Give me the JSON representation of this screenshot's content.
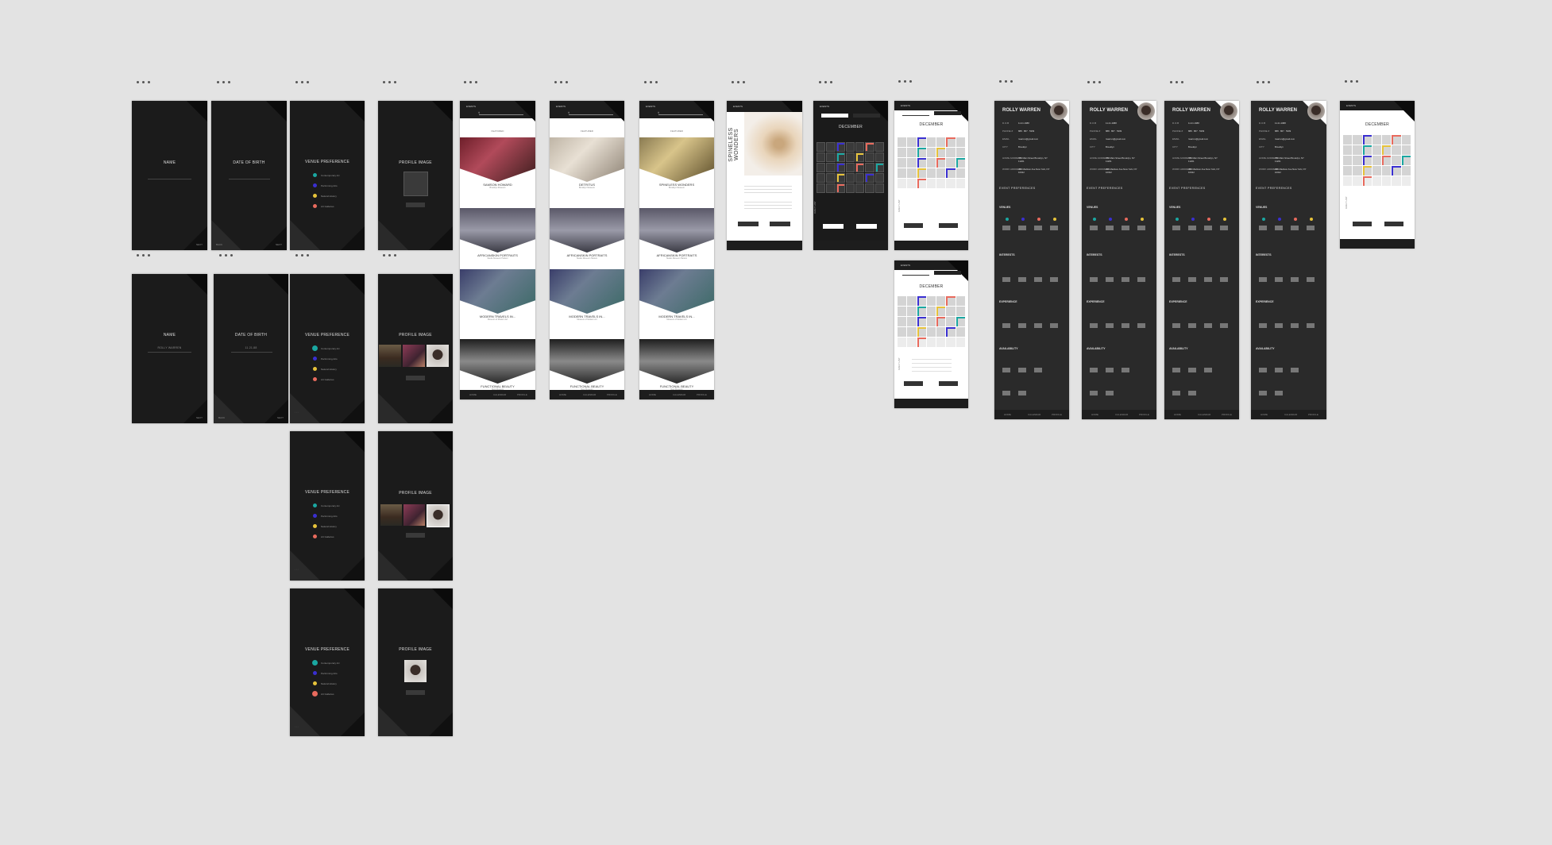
{
  "artboard_menu_icon": "ellipsis-icon",
  "onboarding": {
    "name_title": "NAME",
    "name_value": "ROLLY WARREN",
    "dob_title": "DATE OF BIRTH",
    "dob_value": "11.21.88",
    "venue_title": "VENUE PREFERENCE",
    "venue_options": [
      "Contemporary Art",
      "Performing Arts",
      "Natural History",
      "Art Galleries"
    ],
    "profile_title": "PROFILE IMAGE",
    "profile_button": "UPLOAD",
    "next_label": "NEXT",
    "back_label": "BACK"
  },
  "feed": {
    "header_label": "EVENTS",
    "search_placeholder": "SEARCH",
    "section_label": "FEATURED",
    "events": [
      {
        "title": "SAMSON HOWARD",
        "sub": "Brooklyn Museum"
      },
      {
        "title": "AFRICANSKIN PORTRAITS",
        "sub": "Studio Museum Harlem"
      },
      {
        "title": "MODERN TRAVELS IN...",
        "sub": "Museum of Modern Art"
      },
      {
        "title": "FUNCTIONAL BEAUTY",
        "sub": "New Museum"
      }
    ],
    "alt_first_events": [
      "DETRITUS",
      "SPINELESS WONDERS"
    ],
    "nav_items": [
      "HOME",
      "CALENDAR",
      "PROFILE"
    ]
  },
  "detail": {
    "title": "SPINELESS WONDERS",
    "button_left": "ADD EVENT",
    "button_right": "SHARE EVENT"
  },
  "calendar": {
    "month": "DECEMBER",
    "tabs": [
      "EVENTS",
      "CALENDAR"
    ],
    "side_label": "DAILY LIST",
    "button_left": "ADD EVENT",
    "button_right": "SHARE DATE",
    "nav_items": [
      "HOME",
      "CALENDAR",
      "PROFILE"
    ]
  },
  "profile": {
    "name": "ROLLY WARREN",
    "fields": [
      {
        "label": "D.O.B",
        "value": "11.21.1988"
      },
      {
        "label": "PHONE #",
        "value": "888 . 867 . 5309"
      },
      {
        "label": "EMAIL",
        "value": "rwarren@gmail.com"
      },
      {
        "label": "CITY",
        "value": "Brooklyn"
      },
      {
        "label": "HOME ADDRESS",
        "value": "789 Main Street Brooklyn, NY 11201"
      },
      {
        "label": "WORK ADDRESS",
        "value": "456 Madison Ave New York, NY 10022"
      }
    ],
    "section_event_prefs": "EVENT PREFERENCES",
    "section_venues": "VENUES",
    "section_interests": "INTERESTS",
    "section_experience": "EXPERIENCE",
    "section_availability": "AVAILABILITY",
    "nav_items": [
      "HOME",
      "CALENDAR",
      "PROFILE"
    ]
  },
  "colors": {
    "canvas": "#e3e3e3",
    "dark_artboard": "#1b1b1b",
    "profile_artboard": "#2a2a2a",
    "venue_teal": "#1aa7a1",
    "venue_blue": "#3a2fd1",
    "venue_yellow": "#e6c23a",
    "venue_coral": "#e86a5d"
  }
}
